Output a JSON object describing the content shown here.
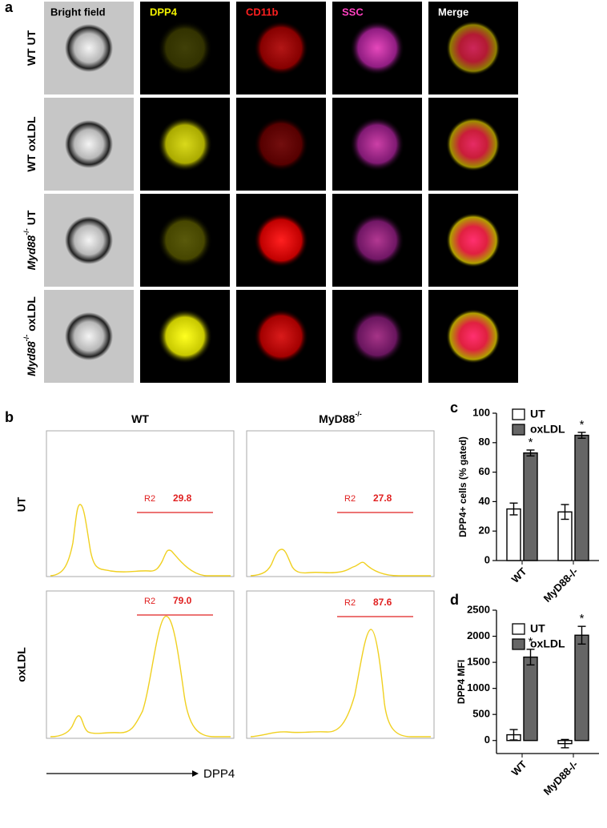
{
  "panel_a": {
    "letter": "a",
    "columns": [
      "Bright field",
      "DPP4",
      "CD11b",
      "SSC",
      "Merge"
    ],
    "rows": [
      {
        "label": "WT UT"
      },
      {
        "label": "WT oxLDL"
      },
      {
        "gene": "Myd88",
        "sup": "-/-",
        "label": "UT"
      },
      {
        "gene": "Myd88",
        "sup": "-/-",
        "label": "oxLDL"
      }
    ]
  },
  "panel_b": {
    "letter": "b",
    "columns": [
      {
        "label": "WT"
      },
      {
        "label": "MyD88",
        "sup": "-/-"
      }
    ],
    "rows": [
      "UT",
      "oxLDL"
    ],
    "gate": "R2",
    "gate_values": [
      [
        "29.8",
        "27.8"
      ],
      [
        "79.0",
        "87.6"
      ]
    ],
    "axis_label": "DPP4"
  },
  "chart_data": [
    {
      "type": "bar",
      "panel_label": "c",
      "y_label": "DPP4+ cells (% gated)",
      "categories": [
        "WT",
        "MyD88-/-"
      ],
      "series": [
        {
          "name": "UT",
          "color": "#ffffff",
          "values": [
            35,
            33
          ],
          "errors": [
            4,
            5
          ]
        },
        {
          "name": "oxLDL",
          "color": "#666666",
          "values": [
            73,
            85
          ],
          "errors": [
            2,
            2
          ],
          "significance": [
            "*",
            "*"
          ]
        }
      ],
      "ylim": [
        0,
        100
      ],
      "yticks": [
        0,
        20,
        40,
        60,
        80,
        100
      ]
    },
    {
      "type": "bar",
      "panel_label": "d",
      "y_label": "DPP4 MFI",
      "categories": [
        "WT",
        "MyD88-/-"
      ],
      "series": [
        {
          "name": "UT",
          "color": "#ffffff",
          "values": [
            110,
            -60
          ],
          "errors": [
            100,
            80
          ]
        },
        {
          "name": "oxLDL",
          "color": "#666666",
          "values": [
            1600,
            2020
          ],
          "errors": [
            150,
            170
          ],
          "significance": [
            "*",
            "*"
          ]
        }
      ],
      "ylim": [
        -250,
        2500
      ],
      "yticks": [
        0,
        500,
        1000,
        1500,
        2000,
        2500
      ]
    }
  ]
}
